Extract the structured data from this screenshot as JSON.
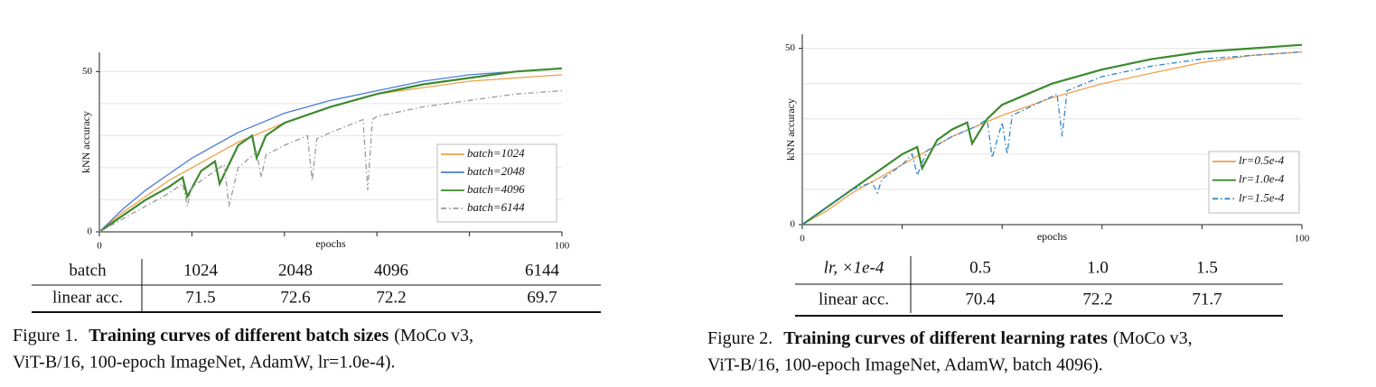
{
  "chart_data": [
    {
      "type": "line",
      "xlabel": "epochs",
      "ylabel": "kNN accuracy",
      "xlim": [
        0,
        100
      ],
      "ylim": [
        0,
        56
      ],
      "xticks": [
        0,
        100
      ],
      "yticks": [
        0,
        50
      ],
      "xminor": [
        20,
        40,
        60,
        80
      ],
      "ygrid": [
        10,
        20,
        30,
        40,
        50
      ],
      "grid": true,
      "legend": "lower right",
      "series": [
        {
          "name": "batch=1024",
          "color": "#f0a04b",
          "linestyle": "solid",
          "x": [
            0,
            5,
            10,
            15,
            20,
            25,
            30,
            40,
            50,
            60,
            70,
            80,
            90,
            100
          ],
          "values": [
            0,
            6,
            11,
            16,
            20,
            24,
            28,
            34,
            39,
            43,
            45,
            47,
            48,
            49
          ]
        },
        {
          "name": "batch=2048",
          "color": "#4a7bd8",
          "linestyle": "solid",
          "x": [
            0,
            5,
            10,
            15,
            20,
            25,
            30,
            40,
            50,
            60,
            70,
            80,
            90,
            100
          ],
          "values": [
            0,
            7,
            13,
            18,
            23,
            27,
            31,
            37,
            41,
            44,
            47,
            49,
            50,
            51
          ]
        },
        {
          "name": "batch=4096",
          "color": "#3c8a2e",
          "linestyle": "solid",
          "x": [
            0,
            5,
            10,
            15,
            18,
            19,
            22,
            25,
            26,
            30,
            33,
            34,
            36,
            40,
            50,
            60,
            70,
            80,
            90,
            100
          ],
          "values": [
            0,
            5,
            10,
            14,
            17,
            11,
            19,
            22,
            15,
            27,
            30,
            23,
            30,
            34,
            39,
            43,
            46,
            48,
            50,
            51
          ]
        },
        {
          "name": "batch=6144",
          "color": "#9a9a9a",
          "linestyle": "dashdot",
          "x": [
            0,
            5,
            10,
            15,
            18,
            19,
            20,
            25,
            27,
            28,
            30,
            34,
            35,
            36,
            40,
            45,
            46,
            47,
            50,
            57,
            58,
            59,
            60,
            70,
            80,
            90,
            100
          ],
          "values": [
            0,
            4,
            8,
            12,
            15,
            8,
            14,
            19,
            21,
            8,
            20,
            25,
            17,
            24,
            27,
            30,
            16,
            29,
            31,
            35,
            13,
            35,
            36,
            39,
            41,
            43,
            44
          ]
        }
      ]
    },
    {
      "type": "line",
      "xlabel": "epochs",
      "ylabel": "kNN accuracy",
      "xlim": [
        0,
        100
      ],
      "ylim": [
        0,
        54
      ],
      "xticks": [
        0,
        100
      ],
      "yticks": [
        0,
        50
      ],
      "xminor": [
        20,
        40,
        60,
        80
      ],
      "ygrid": [
        10,
        20,
        30,
        40,
        50
      ],
      "grid": true,
      "legend": "lower right",
      "series": [
        {
          "name": "lr=0.5e-4",
          "color": "#f0a04b",
          "linestyle": "solid",
          "x": [
            0,
            5,
            10,
            15,
            20,
            25,
            30,
            40,
            50,
            60,
            70,
            80,
            90,
            100
          ],
          "values": [
            0,
            4,
            9,
            13,
            17,
            21,
            25,
            31,
            36,
            40,
            43,
            46,
            48,
            49
          ]
        },
        {
          "name": "lr=1.0e-4",
          "color": "#3c8a2e",
          "linestyle": "solid",
          "x": [
            0,
            5,
            10,
            15,
            20,
            23,
            24,
            27,
            30,
            33,
            34,
            37,
            40,
            50,
            60,
            70,
            80,
            90,
            100
          ],
          "values": [
            0,
            5,
            10,
            15,
            20,
            22,
            16,
            24,
            27,
            29,
            23,
            30,
            34,
            40,
            44,
            47,
            49,
            50,
            51
          ]
        },
        {
          "name": "lr=1.5e-4",
          "color": "#2f86c8",
          "linestyle": "dashdot",
          "x": [
            0,
            5,
            10,
            14,
            15,
            16,
            20,
            22,
            23,
            25,
            30,
            35,
            37,
            38,
            40,
            41,
            42,
            45,
            51,
            52,
            53,
            60,
            70,
            80,
            90,
            100
          ],
          "values": [
            0,
            5,
            10,
            12,
            9,
            13,
            17,
            20,
            14,
            21,
            25,
            28,
            30,
            19,
            29,
            20,
            31,
            33,
            37,
            25,
            38,
            42,
            45,
            47,
            48,
            49
          ]
        }
      ]
    }
  ],
  "tables": [
    {
      "rows": [
        [
          "batch",
          1024,
          2048,
          4096,
          6144
        ],
        [
          "linear acc.",
          71.5,
          72.6,
          72.2,
          69.7
        ]
      ]
    },
    {
      "rows": [
        [
          "lr, ×1e-4",
          0.5,
          "1.0",
          1.5
        ],
        [
          "linear acc.",
          70.4,
          72.2,
          71.7
        ]
      ]
    }
  ],
  "captions": [
    {
      "label": "Figure 1.",
      "bold": "Training curves of different batch sizes",
      "rest": "(MoCo v3,",
      "line2": "ViT-B/16, 100-epoch ImageNet, AdamW, lr=1.0e-4)."
    },
    {
      "label": "Figure 2.",
      "bold": "Training curves of different learning rates",
      "rest": "(MoCo v3,",
      "line2": "ViT-B/16, 100-epoch ImageNet, AdamW, batch 4096)."
    }
  ]
}
